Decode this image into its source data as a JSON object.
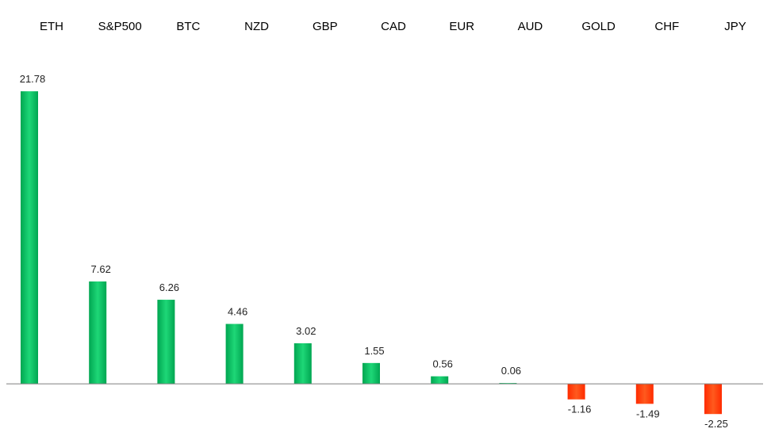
{
  "chart_data": {
    "type": "bar",
    "title": "",
    "xlabel": "",
    "ylabel": "",
    "categories": [
      "ETH",
      "S&P500",
      "BTC",
      "NZD",
      "GBP",
      "CAD",
      "EUR",
      "AUD",
      "GOLD",
      "CHF",
      "JPY"
    ],
    "values": [
      21.78,
      7.62,
      6.26,
      4.46,
      3.02,
      1.55,
      0.56,
      0.06,
      -1.16,
      -1.49,
      -2.25
    ],
    "value_labels": [
      "21.78",
      "7.62",
      "6.26",
      "4.46",
      "3.02",
      "1.55",
      "0.56",
      "0.06",
      "-1.16",
      "-1.49",
      "-2.25"
    ],
    "ylim": [
      -3.3,
      23.5
    ],
    "grid": false,
    "legend": "none",
    "category_axis_position": "top",
    "colors": {
      "positive_light": "#1ed777",
      "positive_dark": "#00a651",
      "negative_light": "#ff5a1e",
      "negative_dark": "#ff2b00",
      "axis": "#7f7f7f"
    }
  }
}
